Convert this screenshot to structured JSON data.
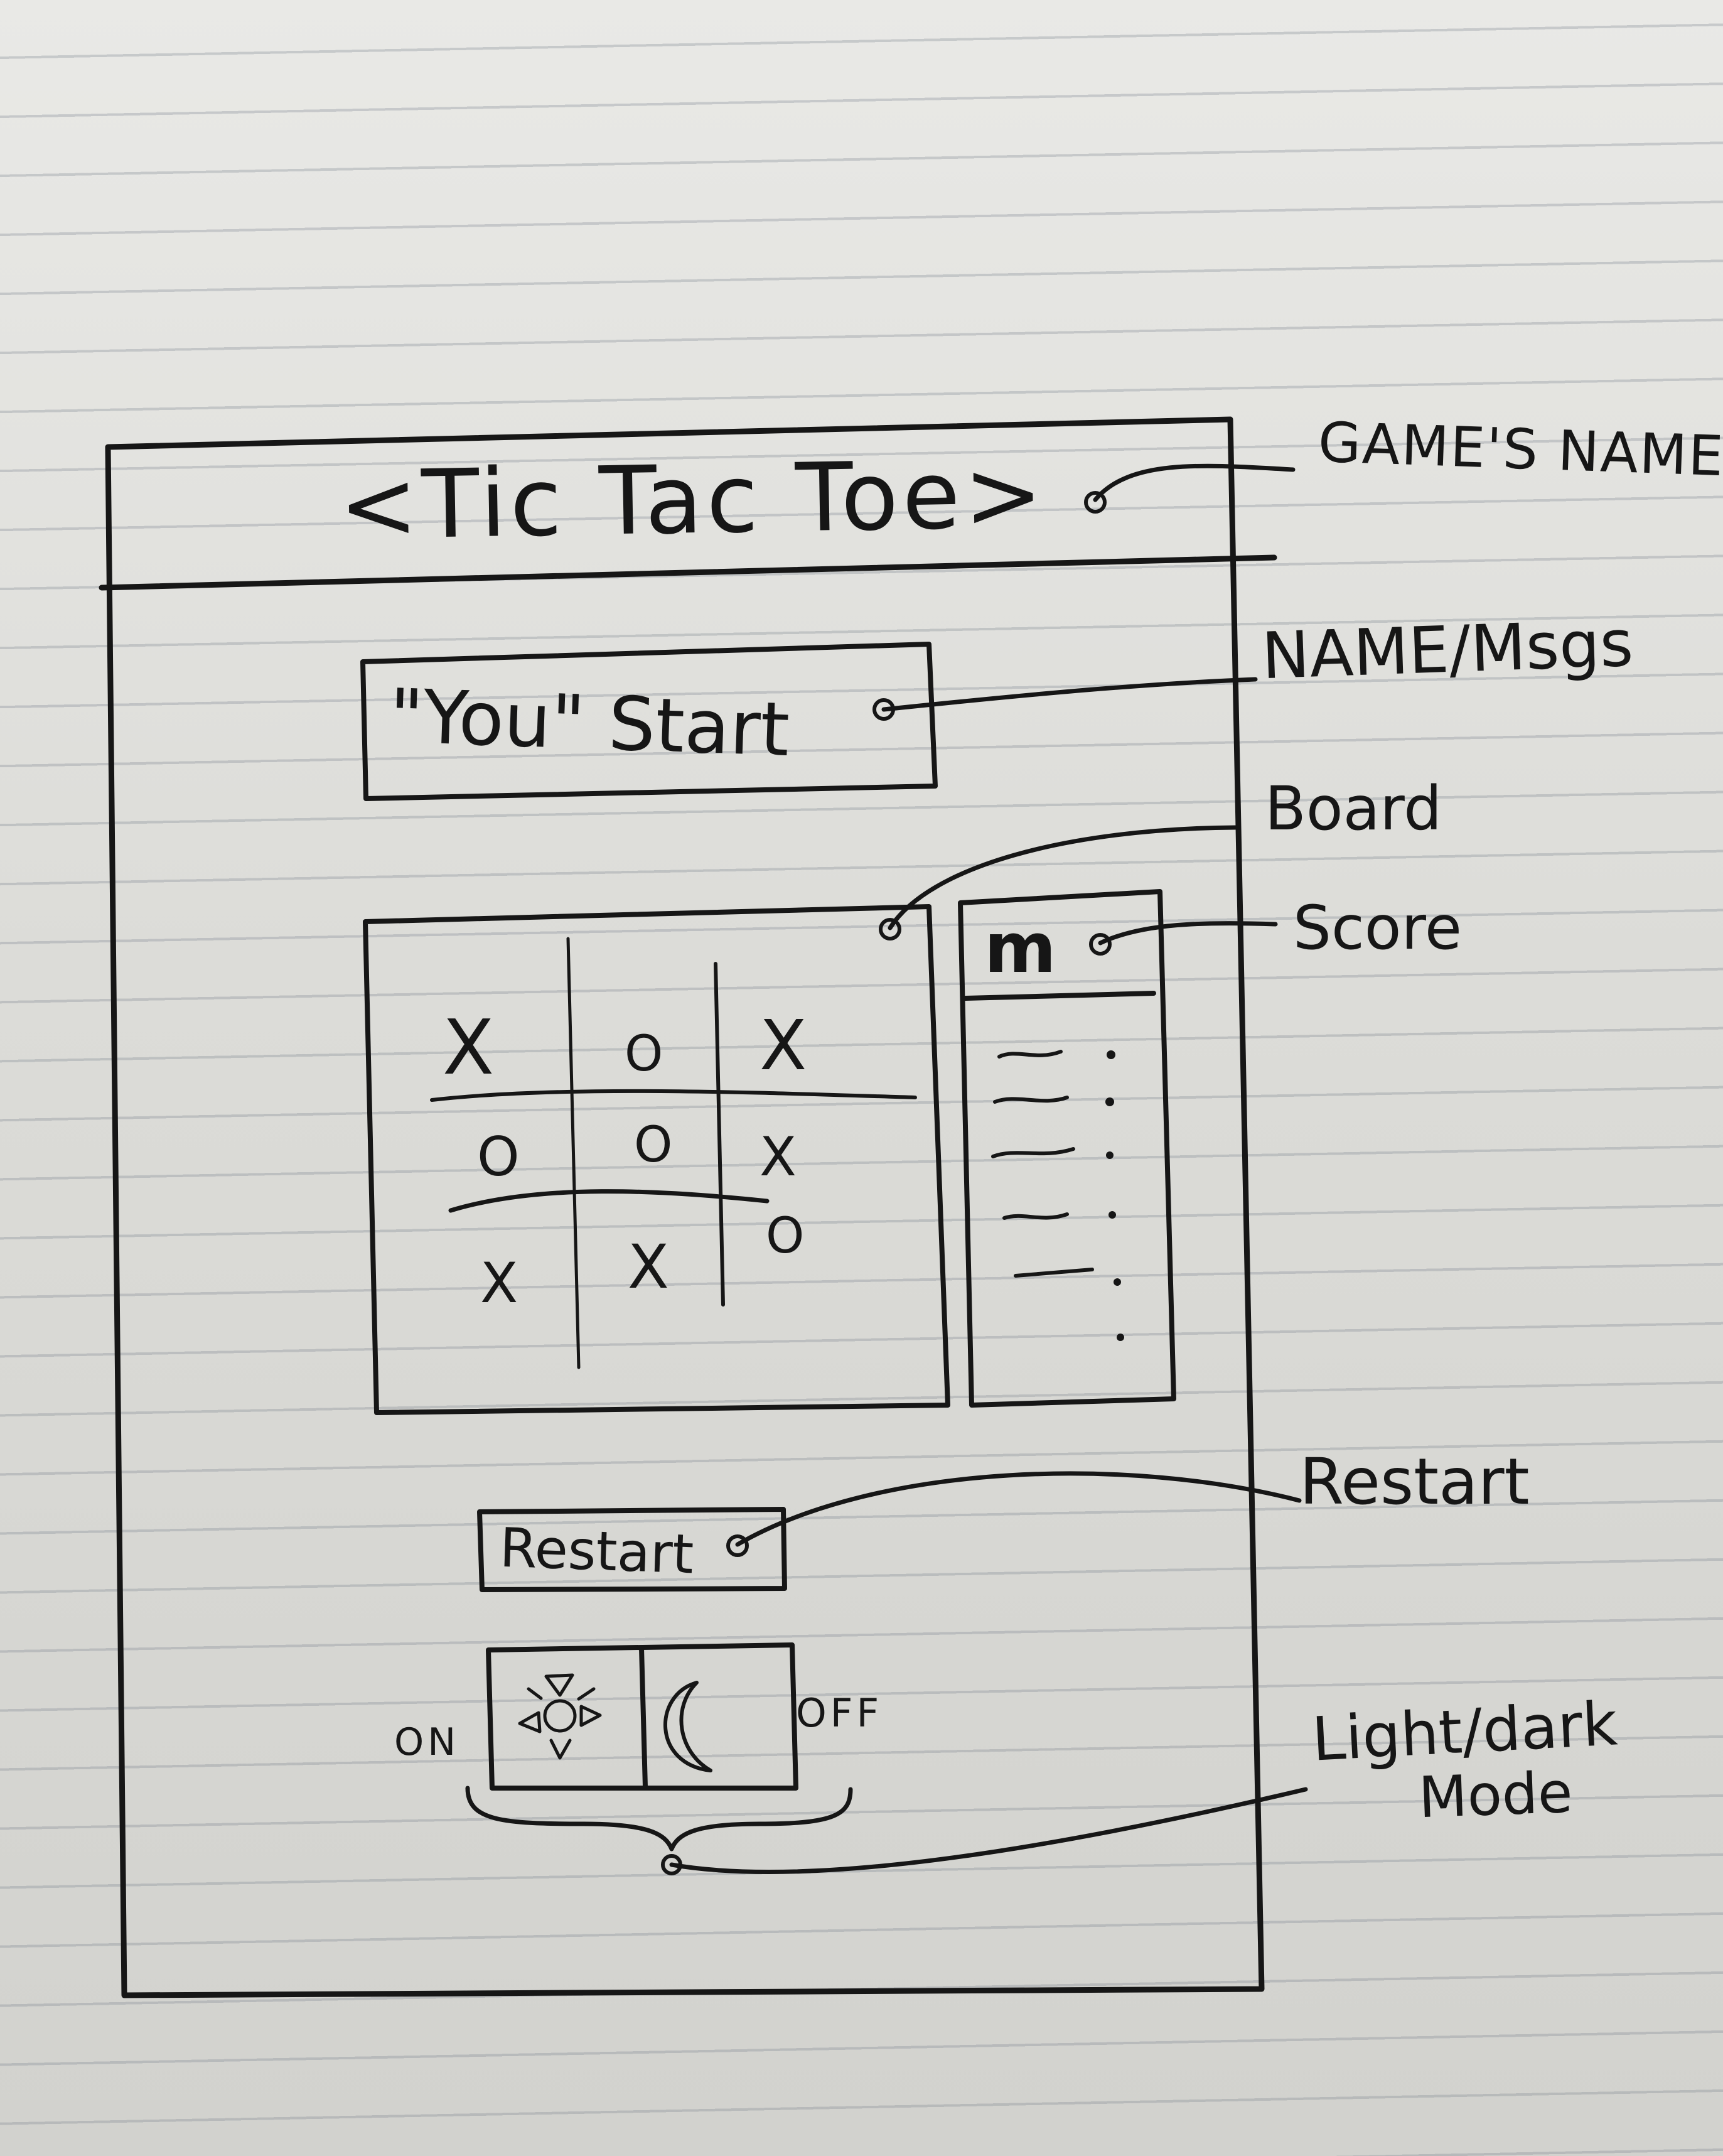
{
  "header": {
    "title": "<Tic Tac Toe>"
  },
  "message_box": {
    "text": "\"You\" Start"
  },
  "board": {
    "cells": [
      "X",
      "O",
      "X",
      "O",
      "O",
      "X",
      "X",
      "X",
      "O"
    ]
  },
  "score": {
    "header": "m"
  },
  "restart": {
    "label": "Restart"
  },
  "mode_toggle": {
    "on_label": "ON",
    "off_label": "OFF",
    "light_icon": "sun-icon",
    "dark_icon": "moon-icon"
  },
  "annotations": {
    "game_name": "GAME'S NAME",
    "name_msgs": "NAME/Msgs",
    "board": "Board",
    "score": "Score",
    "restart": "Restart",
    "light_dark_line1": "Light/dark",
    "light_dark_line2": "Mode"
  },
  "colors": {
    "ink": "#161616",
    "paper": "#e4e4e1",
    "rule": "#8a919b"
  }
}
